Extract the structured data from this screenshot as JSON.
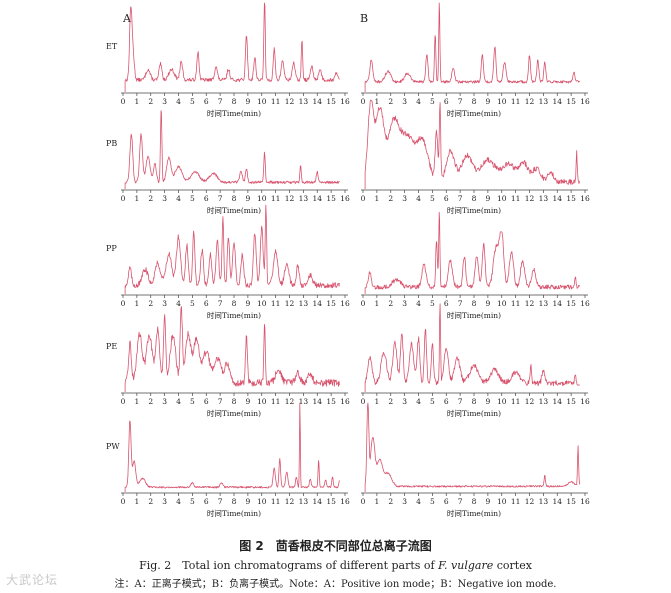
{
  "chart_data": {
    "type": "line",
    "panel_labels": [
      "A",
      "B"
    ],
    "row_labels": [
      "ET",
      "PB",
      "PP",
      "PE",
      "PW"
    ],
    "xlabel": "时间Time(min)",
    "x_ticks": [
      0,
      1,
      2,
      3,
      4,
      5,
      6,
      7,
      8,
      9,
      10,
      11,
      12,
      13,
      14,
      15,
      16
    ],
    "xlim": [
      0,
      16
    ],
    "line_color": "#d8546e",
    "charts": [
      {
        "row": "ET",
        "panel": "A",
        "baseline": 0.12,
        "noise": 0.04,
        "peaks": [
          [
            0.55,
            0.72,
            0.08
          ],
          [
            0.7,
            0.35,
            0.1
          ],
          [
            1.8,
            0.12,
            0.15
          ],
          [
            2.7,
            0.18,
            0.1
          ],
          [
            3.5,
            0.12,
            0.2
          ],
          [
            4.2,
            0.2,
            0.1
          ],
          [
            5.4,
            0.32,
            0.08
          ],
          [
            6.7,
            0.15,
            0.1
          ],
          [
            7.6,
            0.12,
            0.1
          ],
          [
            8.9,
            0.52,
            0.07
          ],
          [
            9.5,
            0.25,
            0.08
          ],
          [
            10.2,
            0.95,
            0.05
          ],
          [
            10.9,
            0.35,
            0.07
          ],
          [
            11.5,
            0.22,
            0.1
          ],
          [
            12.3,
            0.2,
            0.1
          ],
          [
            12.9,
            0.45,
            0.05
          ],
          [
            13.6,
            0.15,
            0.1
          ],
          [
            14.2,
            0.12,
            0.1
          ],
          [
            15.4,
            0.08,
            0.1
          ]
        ]
      },
      {
        "row": "ET",
        "panel": "B",
        "baseline": 0.1,
        "noise": 0.03,
        "peaks": [
          [
            0.6,
            0.25,
            0.1
          ],
          [
            1.8,
            0.12,
            0.2
          ],
          [
            3.2,
            0.1,
            0.2
          ],
          [
            4.6,
            0.3,
            0.08
          ],
          [
            5.2,
            0.55,
            0.05
          ],
          [
            5.5,
            0.92,
            0.04
          ],
          [
            6.5,
            0.15,
            0.1
          ],
          [
            8.6,
            0.3,
            0.08
          ],
          [
            9.5,
            0.4,
            0.08
          ],
          [
            10.2,
            0.22,
            0.1
          ],
          [
            12.0,
            0.3,
            0.07
          ],
          [
            12.6,
            0.25,
            0.07
          ],
          [
            13.1,
            0.22,
            0.07
          ],
          [
            15.2,
            0.12,
            0.07
          ]
        ]
      },
      {
        "row": "PB",
        "panel": "A",
        "baseline": 0.06,
        "noise": 0.03,
        "peaks": [
          [
            0.6,
            0.55,
            0.1
          ],
          [
            1.3,
            0.55,
            0.1
          ],
          [
            1.8,
            0.3,
            0.15
          ],
          [
            2.3,
            0.22,
            0.1
          ],
          [
            2.75,
            0.85,
            0.05
          ],
          [
            3.3,
            0.28,
            0.15
          ],
          [
            4.0,
            0.18,
            0.25
          ],
          [
            5.2,
            0.12,
            0.3
          ],
          [
            6.5,
            0.1,
            0.3
          ],
          [
            8.5,
            0.12,
            0.1
          ],
          [
            8.9,
            0.16,
            0.07
          ],
          [
            10.2,
            0.35,
            0.05
          ],
          [
            12.8,
            0.2,
            0.05
          ],
          [
            14.0,
            0.12,
            0.07
          ]
        ]
      },
      {
        "row": "PB",
        "panel": "B",
        "baseline": 0.06,
        "noise": 0.06,
        "peaks": [
          [
            0.55,
            0.85,
            0.2
          ],
          [
            1.2,
            0.82,
            0.3
          ],
          [
            2.2,
            0.65,
            0.4
          ],
          [
            3.2,
            0.5,
            0.5
          ],
          [
            4.3,
            0.45,
            0.4
          ],
          [
            5.3,
            0.55,
            0.1
          ],
          [
            5.55,
            0.85,
            0.05
          ],
          [
            6.3,
            0.35,
            0.3
          ],
          [
            7.5,
            0.3,
            0.4
          ],
          [
            9.0,
            0.25,
            0.5
          ],
          [
            10.5,
            0.2,
            0.5
          ],
          [
            11.6,
            0.2,
            0.3
          ],
          [
            12.5,
            0.15,
            0.3
          ],
          [
            13.5,
            0.12,
            0.2
          ],
          [
            15.4,
            0.35,
            0.04
          ]
        ]
      },
      {
        "row": "PP",
        "panel": "A",
        "baseline": 0.08,
        "noise": 0.06,
        "peaks": [
          [
            0.5,
            0.2,
            0.1
          ],
          [
            1.6,
            0.18,
            0.2
          ],
          [
            2.5,
            0.25,
            0.2
          ],
          [
            3.3,
            0.35,
            0.2
          ],
          [
            4.0,
            0.55,
            0.15
          ],
          [
            4.6,
            0.45,
            0.1
          ],
          [
            5.1,
            0.6,
            0.08
          ],
          [
            5.7,
            0.4,
            0.1
          ],
          [
            6.3,
            0.35,
            0.1
          ],
          [
            6.8,
            0.5,
            0.1
          ],
          [
            7.2,
            0.78,
            0.06
          ],
          [
            7.6,
            0.55,
            0.08
          ],
          [
            8.0,
            0.5,
            0.1
          ],
          [
            8.6,
            0.35,
            0.1
          ],
          [
            9.5,
            0.6,
            0.1
          ],
          [
            10.0,
            0.65,
            0.1
          ],
          [
            10.3,
            0.9,
            0.05
          ],
          [
            11.0,
            0.4,
            0.15
          ],
          [
            11.8,
            0.25,
            0.15
          ],
          [
            12.6,
            0.22,
            0.1
          ],
          [
            13.5,
            0.12,
            0.15
          ]
        ]
      },
      {
        "row": "PP",
        "panel": "B",
        "baseline": 0.06,
        "noise": 0.05,
        "peaks": [
          [
            0.5,
            0.18,
            0.1
          ],
          [
            2.4,
            0.08,
            0.3
          ],
          [
            4.4,
            0.25,
            0.15
          ],
          [
            5.3,
            0.55,
            0.06
          ],
          [
            5.5,
            0.88,
            0.04
          ],
          [
            6.3,
            0.3,
            0.15
          ],
          [
            7.3,
            0.35,
            0.1
          ],
          [
            8.2,
            0.35,
            0.12
          ],
          [
            8.7,
            0.5,
            0.1
          ],
          [
            9.6,
            0.45,
            0.2
          ],
          [
            10.0,
            0.58,
            0.15
          ],
          [
            10.7,
            0.4,
            0.15
          ],
          [
            11.5,
            0.3,
            0.15
          ],
          [
            12.3,
            0.2,
            0.15
          ],
          [
            15.3,
            0.12,
            0.05
          ]
        ]
      },
      {
        "row": "PE",
        "panel": "A",
        "baseline": 0.08,
        "noise": 0.08,
        "peaks": [
          [
            0.5,
            0.45,
            0.1
          ],
          [
            1.2,
            0.55,
            0.2
          ],
          [
            1.9,
            0.55,
            0.2
          ],
          [
            2.5,
            0.6,
            0.15
          ],
          [
            3.0,
            0.75,
            0.08
          ],
          [
            3.6,
            0.55,
            0.2
          ],
          [
            4.2,
            0.85,
            0.08
          ],
          [
            4.7,
            0.55,
            0.2
          ],
          [
            5.3,
            0.5,
            0.2
          ],
          [
            6.0,
            0.35,
            0.25
          ],
          [
            6.8,
            0.28,
            0.25
          ],
          [
            7.5,
            0.2,
            0.2
          ],
          [
            8.9,
            0.52,
            0.07
          ],
          [
            10.2,
            0.68,
            0.05
          ],
          [
            11.2,
            0.15,
            0.2
          ],
          [
            12.6,
            0.12,
            0.15
          ],
          [
            13.5,
            0.1,
            0.15
          ]
        ]
      },
      {
        "row": "PE",
        "panel": "B",
        "baseline": 0.08,
        "noise": 0.06,
        "peaks": [
          [
            0.5,
            0.3,
            0.15
          ],
          [
            1.5,
            0.35,
            0.2
          ],
          [
            2.3,
            0.45,
            0.15
          ],
          [
            2.8,
            0.55,
            0.1
          ],
          [
            3.5,
            0.45,
            0.15
          ],
          [
            4.0,
            0.5,
            0.1
          ],
          [
            4.5,
            0.6,
            0.08
          ],
          [
            5.0,
            0.45,
            0.08
          ],
          [
            5.55,
            0.9,
            0.04
          ],
          [
            6.0,
            0.4,
            0.15
          ],
          [
            6.8,
            0.28,
            0.2
          ],
          [
            8.0,
            0.2,
            0.3
          ],
          [
            9.5,
            0.15,
            0.3
          ],
          [
            11.0,
            0.12,
            0.3
          ],
          [
            12.1,
            0.2,
            0.05
          ],
          [
            13.0,
            0.15,
            0.1
          ],
          [
            15.3,
            0.12,
            0.05
          ]
        ]
      },
      {
        "row": "PW",
        "panel": "A",
        "baseline": 0.04,
        "noise": 0.02,
        "peaks": [
          [
            0.5,
            0.75,
            0.08
          ],
          [
            0.8,
            0.3,
            0.12
          ],
          [
            1.4,
            0.1,
            0.2
          ],
          [
            5.0,
            0.05,
            0.1
          ],
          [
            7.1,
            0.05,
            0.1
          ],
          [
            10.9,
            0.22,
            0.08
          ],
          [
            11.3,
            0.32,
            0.06
          ],
          [
            11.8,
            0.18,
            0.08
          ],
          [
            12.5,
            0.12,
            0.06
          ],
          [
            12.75,
            0.98,
            0.03
          ],
          [
            13.5,
            0.1,
            0.06
          ],
          [
            14.1,
            0.32,
            0.04
          ],
          [
            14.6,
            0.08,
            0.06
          ],
          [
            15.1,
            0.12,
            0.05
          ],
          [
            15.6,
            0.08,
            0.05
          ]
        ]
      },
      {
        "row": "PW",
        "panel": "B",
        "baseline": 0.05,
        "noise": 0.02,
        "peaks": [
          [
            0.35,
            0.95,
            0.07
          ],
          [
            0.7,
            0.55,
            0.15
          ],
          [
            1.2,
            0.3,
            0.2
          ],
          [
            1.8,
            0.15,
            0.25
          ],
          [
            13.1,
            0.12,
            0.05
          ],
          [
            15.0,
            0.05,
            0.2
          ],
          [
            15.5,
            0.45,
            0.04
          ]
        ]
      }
    ]
  },
  "caption": {
    "title_cn": "图 2　茴香根皮不同部位总离子流图",
    "title_en_prefix": "Fig. 2　Total ion chromatograms of different parts of ",
    "title_en_species": "F. vulgare",
    "title_en_suffix": " cortex",
    "note": "注：A：正离子模式；B：负离子模式。Note：A：Positive ion mode；B：Negative ion mode."
  },
  "watermark": "大武论坛"
}
